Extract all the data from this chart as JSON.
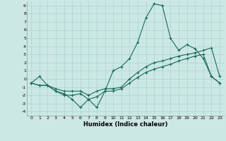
{
  "xlabel": "Humidex (Indice chaleur)",
  "bg_color": "#cce8e4",
  "grid_color": "#aad4cf",
  "line_color": "#1a6b5a",
  "x_values": [
    0,
    1,
    2,
    3,
    4,
    5,
    6,
    7,
    8,
    9,
    10,
    11,
    12,
    13,
    14,
    15,
    16,
    17,
    18,
    19,
    20,
    21,
    22,
    23
  ],
  "line1": [
    -0.5,
    0.3,
    -0.8,
    -1.5,
    -1.8,
    -2.5,
    -3.5,
    -2.5,
    -3.5,
    -1.5,
    1.0,
    1.5,
    2.5,
    4.5,
    7.5,
    9.2,
    9.0,
    5.0,
    3.5,
    4.2,
    3.7,
    2.5,
    0.3,
    -0.5
  ],
  "line2": [
    -0.5,
    -0.8,
    -0.8,
    -1.2,
    -1.5,
    -1.5,
    -1.5,
    -2.0,
    -1.5,
    -1.2,
    -1.2,
    -1.0,
    0.0,
    0.8,
    1.5,
    2.0,
    2.2,
    2.5,
    2.8,
    3.0,
    3.2,
    3.5,
    3.8,
    0.3
  ],
  "line3": [
    -0.5,
    -0.8,
    -0.8,
    -1.5,
    -2.0,
    -2.0,
    -1.8,
    -2.5,
    -2.2,
    -1.5,
    -1.5,
    -1.2,
    -0.5,
    0.2,
    0.8,
    1.2,
    1.5,
    1.8,
    2.2,
    2.5,
    2.8,
    3.0,
    0.3,
    -0.5
  ],
  "ylim": [
    -4.5,
    9.5
  ],
  "xlim": [
    -0.5,
    23.5
  ],
  "yticks": [
    -4,
    -3,
    -2,
    -1,
    0,
    1,
    2,
    3,
    4,
    5,
    6,
    7,
    8,
    9
  ],
  "xticks": [
    0,
    1,
    2,
    3,
    4,
    5,
    6,
    7,
    8,
    9,
    10,
    11,
    12,
    13,
    14,
    15,
    16,
    17,
    18,
    19,
    20,
    21,
    22,
    23
  ]
}
